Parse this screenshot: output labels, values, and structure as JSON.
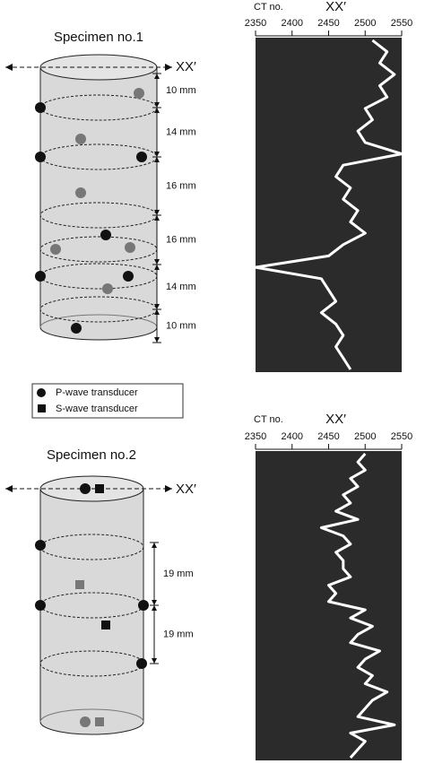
{
  "specimen1": {
    "title": "Specimen no.1",
    "axis_label": "XX′",
    "spacings": [
      "10 mm",
      "14 mm",
      "16 mm",
      "16 mm",
      "14 mm",
      "10 mm"
    ]
  },
  "legend": {
    "p_wave": "P-wave transducer",
    "s_wave": "S-wave transducer"
  },
  "specimen2": {
    "title": "Specimen no.2",
    "axis_label": "XX′",
    "spacings": [
      "19 mm",
      "19 mm"
    ]
  },
  "chart_data": [
    {
      "type": "line",
      "title": "XX′",
      "x_label": "CT no.",
      "xlim": [
        2350,
        2550
      ],
      "xticks": [
        2350,
        2400,
        2450,
        2500,
        2550
      ],
      "color": "#ffffff",
      "values": [
        2510,
        2530,
        2520,
        2540,
        2520,
        2530,
        2500,
        2510,
        2490,
        2500,
        2550,
        2470,
        2460,
        2480,
        2470,
        2490,
        2480,
        2500,
        2470,
        2450,
        2350,
        2440,
        2450,
        2460,
        2440,
        2460,
        2470,
        2460,
        2470,
        2480
      ]
    },
    {
      "type": "line",
      "title": "XX′",
      "x_label": "CT no.",
      "xlim": [
        2350,
        2550
      ],
      "xticks": [
        2350,
        2400,
        2450,
        2500,
        2550
      ],
      "color": "#ffffff",
      "values": [
        2500,
        2490,
        2500,
        2480,
        2490,
        2470,
        2480,
        2460,
        2490,
        2440,
        2470,
        2480,
        2460,
        2470,
        2470,
        2480,
        2450,
        2460,
        2450,
        2500,
        2480,
        2510,
        2490,
        2480,
        2520,
        2500,
        2490,
        2510,
        2500,
        2530,
        2510,
        2500,
        2490,
        2540,
        2480,
        2500,
        2490,
        2480
      ]
    }
  ]
}
